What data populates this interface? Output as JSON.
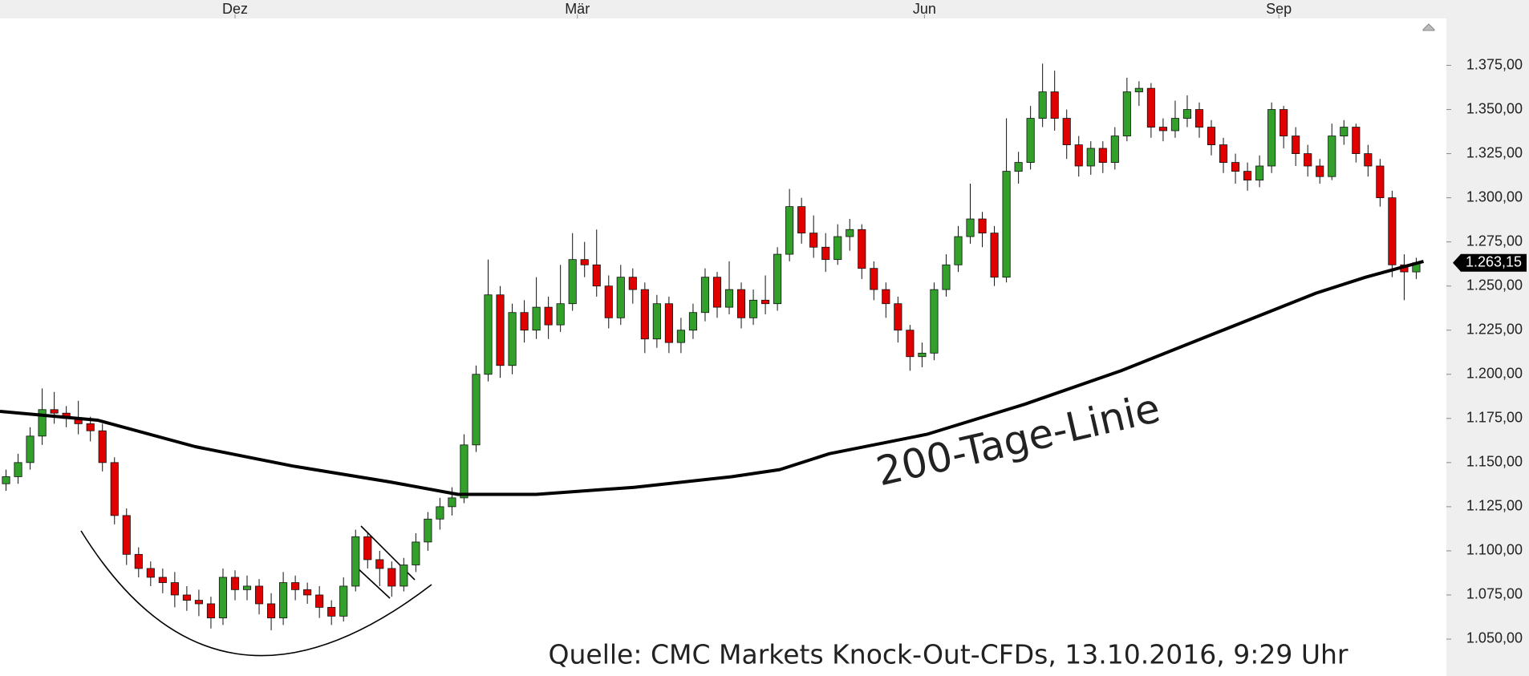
{
  "chart_data": {
    "type": "candlestick",
    "source": "Quelle: CMC Markets Knock-Out-CFDs, 13.10.2016, 9:29 Uhr",
    "annotation": "200-Tage-Linie",
    "xlim": [
      -0.5,
      119.5
    ],
    "xticks": [
      {
        "value": 19,
        "label": "Dez"
      },
      {
        "value": 47.4,
        "label": "Mär"
      },
      {
        "value": 76.2,
        "label": "Jun"
      },
      {
        "value": 105.6,
        "label": "Sep"
      }
    ],
    "ylim": [
      1040,
      1385
    ],
    "yticks": [
      {
        "value": 1050,
        "label": "1.050,00"
      },
      {
        "value": 1075,
        "label": "1.075,00"
      },
      {
        "value": 1100,
        "label": "1.100,00"
      },
      {
        "value": 1125,
        "label": "1.125,00"
      },
      {
        "value": 1150,
        "label": "1.150,00"
      },
      {
        "value": 1175,
        "label": "1.175,00"
      },
      {
        "value": 1200,
        "label": "1.200,00"
      },
      {
        "value": 1225,
        "label": "1.225,00"
      },
      {
        "value": 1250,
        "label": "1.250,00"
      },
      {
        "value": 1275,
        "label": "1.275,00"
      },
      {
        "value": 1300,
        "label": "1.300,00"
      },
      {
        "value": 1325,
        "label": "1.325,00"
      },
      {
        "value": 1350,
        "label": "1.350,00"
      },
      {
        "value": 1375,
        "label": "1.375,00"
      }
    ],
    "up_color": "#33a02c",
    "down_color": "#e00000",
    "last_price": {
      "value": 1263.15,
      "label": "1.263,15"
    },
    "open": [
      1138,
      1142,
      1150,
      1165,
      1180,
      1178,
      1175,
      1172,
      1168,
      1150,
      1120,
      1098,
      1090,
      1085,
      1082,
      1075,
      1072,
      1070,
      1062,
      1085,
      1078,
      1080,
      1070,
      1062,
      1082,
      1078,
      1075,
      1068,
      1063,
      1080,
      1108,
      1095,
      1090,
      1080,
      1092,
      1105,
      1118,
      1125,
      1130,
      1160,
      1200,
      1245,
      1205,
      1235,
      1225,
      1238,
      1228,
      1240,
      1265,
      1262,
      1250,
      1232,
      1255,
      1248,
      1220,
      1240,
      1218,
      1225,
      1235,
      1255,
      1238,
      1248,
      1232,
      1242,
      1240,
      1268,
      1295,
      1280,
      1272,
      1265,
      1278,
      1282,
      1260,
      1248,
      1240,
      1225,
      1210,
      1212,
      1248,
      1262,
      1278,
      1288,
      1280,
      1255,
      1315,
      1320,
      1345,
      1360,
      1345,
      1330,
      1318,
      1328,
      1320,
      1335,
      1360,
      1362,
      1340,
      1338,
      1345,
      1350,
      1340,
      1330,
      1320,
      1315,
      1310,
      1318,
      1350,
      1335,
      1325,
      1318,
      1312,
      1335,
      1340,
      1325,
      1318,
      1300,
      1262,
      1258
    ],
    "high": [
      1146,
      1155,
      1170,
      1192,
      1190,
      1182,
      1185,
      1176,
      1172,
      1153,
      1124,
      1102,
      1094,
      1090,
      1088,
      1080,
      1078,
      1074,
      1090,
      1089,
      1086,
      1084,
      1076,
      1088,
      1086,
      1082,
      1080,
      1072,
      1085,
      1112,
      1110,
      1100,
      1094,
      1096,
      1110,
      1122,
      1130,
      1136,
      1166,
      1205,
      1265,
      1250,
      1240,
      1242,
      1255,
      1244,
      1262,
      1280,
      1275,
      1282,
      1256,
      1262,
      1260,
      1252,
      1245,
      1244,
      1232,
      1240,
      1260,
      1258,
      1264,
      1252,
      1248,
      1256,
      1272,
      1305,
      1300,
      1290,
      1280,
      1285,
      1288,
      1285,
      1264,
      1252,
      1244,
      1228,
      1218,
      1252,
      1268,
      1284,
      1308,
      1292,
      1284,
      1345,
      1326,
      1352,
      1376,
      1372,
      1350,
      1335,
      1332,
      1332,
      1340,
      1368,
      1366,
      1365,
      1345,
      1355,
      1358,
      1354,
      1344,
      1334,
      1325,
      1320,
      1324,
      1354,
      1352,
      1340,
      1330,
      1322,
      1342,
      1344,
      1342,
      1330,
      1322,
      1304,
      1268,
      1266
    ],
    "low": [
      1134,
      1138,
      1146,
      1160,
      1172,
      1170,
      1166,
      1162,
      1145,
      1115,
      1092,
      1085,
      1080,
      1076,
      1068,
      1066,
      1063,
      1056,
      1058,
      1072,
      1072,
      1064,
      1055,
      1058,
      1072,
      1070,
      1062,
      1058,
      1060,
      1077,
      1090,
      1080,
      1074,
      1077,
      1088,
      1100,
      1112,
      1120,
      1127,
      1156,
      1196,
      1198,
      1200,
      1218,
      1220,
      1220,
      1224,
      1236,
      1255,
      1244,
      1226,
      1228,
      1240,
      1212,
      1215,
      1212,
      1212,
      1220,
      1230,
      1232,
      1234,
      1226,
      1228,
      1234,
      1236,
      1264,
      1274,
      1266,
      1258,
      1262,
      1270,
      1254,
      1242,
      1232,
      1218,
      1202,
      1204,
      1208,
      1244,
      1258,
      1274,
      1272,
      1250,
      1252,
      1308,
      1316,
      1340,
      1338,
      1322,
      1312,
      1313,
      1314,
      1316,
      1332,
      1352,
      1334,
      1332,
      1334,
      1340,
      1334,
      1324,
      1314,
      1308,
      1304,
      1306,
      1314,
      1328,
      1318,
      1312,
      1308,
      1310,
      1330,
      1320,
      1312,
      1295,
      1255,
      1242,
      1254
    ],
    "close": [
      1142,
      1150,
      1165,
      1180,
      1178,
      1175,
      1172,
      1168,
      1150,
      1120,
      1098,
      1090,
      1085,
      1082,
      1075,
      1072,
      1070,
      1062,
      1085,
      1078,
      1080,
      1070,
      1062,
      1082,
      1078,
      1075,
      1068,
      1063,
      1080,
      1108,
      1095,
      1090,
      1080,
      1092,
      1105,
      1118,
      1125,
      1130,
      1160,
      1200,
      1245,
      1205,
      1235,
      1225,
      1238,
      1228,
      1240,
      1265,
      1262,
      1250,
      1232,
      1255,
      1248,
      1220,
      1240,
      1218,
      1225,
      1235,
      1255,
      1238,
      1248,
      1232,
      1242,
      1240,
      1268,
      1295,
      1280,
      1272,
      1265,
      1278,
      1282,
      1260,
      1248,
      1240,
      1225,
      1210,
      1212,
      1248,
      1262,
      1278,
      1288,
      1280,
      1255,
      1315,
      1320,
      1345,
      1360,
      1345,
      1330,
      1318,
      1328,
      1320,
      1335,
      1360,
      1362,
      1340,
      1338,
      1345,
      1350,
      1340,
      1330,
      1320,
      1315,
      1310,
      1318,
      1350,
      1335,
      1325,
      1318,
      1312,
      1335,
      1340,
      1325,
      1318,
      1300,
      1262,
      1258,
      1263.15
    ],
    "moving_average": {
      "x": [
        -0.5,
        7.6,
        15.7,
        23.8,
        31.9,
        37.5,
        44,
        52.1,
        60.2,
        64.2,
        68.3,
        76.4,
        84.5,
        92.5,
        100.6,
        108.7,
        112.8,
        117.6
      ],
      "values": [
        1179,
        1174,
        1159,
        1148,
        1139,
        1132,
        1132,
        1136,
        1142,
        1146,
        1155,
        1166,
        1183,
        1202,
        1224,
        1246,
        1255,
        1264
      ],
      "color": "#000000"
    }
  }
}
